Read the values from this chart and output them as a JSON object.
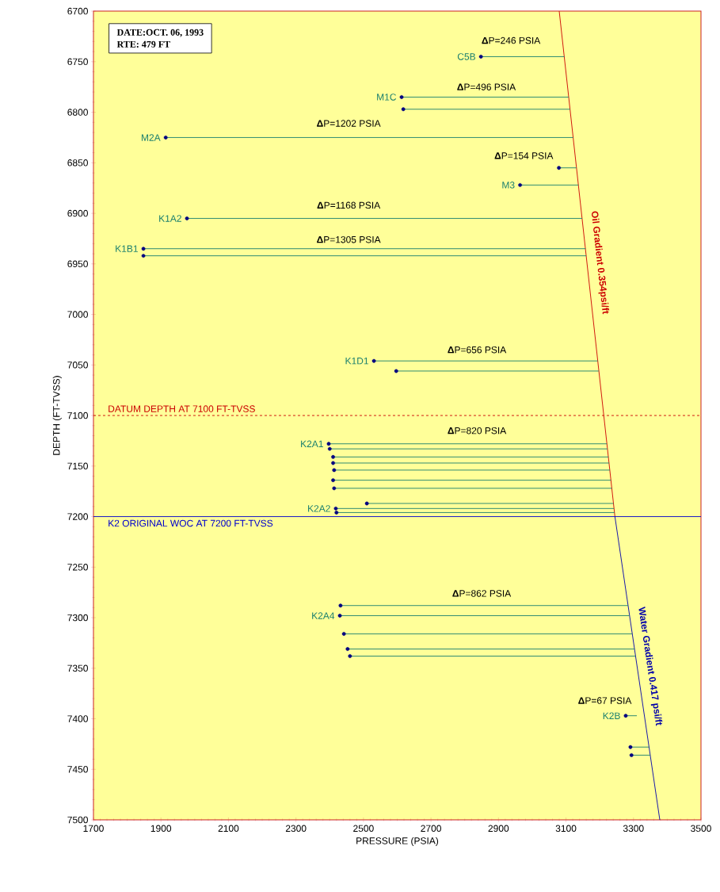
{
  "chart_data": {
    "type": "line",
    "xlabel": "PRESSURE (PSIA)",
    "ylabel": "DEPTH (FT-TVSS)",
    "xlim": [
      1700,
      3500
    ],
    "ylim": [
      7500,
      6700
    ],
    "xticks": [
      1700,
      1900,
      2100,
      2300,
      2500,
      2700,
      2900,
      3100,
      3300,
      3500
    ],
    "yticks": [
      6700,
      6750,
      6800,
      6850,
      6900,
      6950,
      7000,
      7050,
      7100,
      7150,
      7200,
      7250,
      7300,
      7350,
      7400,
      7450,
      7500
    ],
    "series": [
      {
        "name": "Oil Gradient 0.354psi/ft",
        "color": "#cc0000",
        "x": [
          3080,
          3245
        ],
        "values": [
          6700,
          7200
        ]
      },
      {
        "name": "Water Gradient 0.417 psi/ft",
        "color": "#0000aa",
        "x": [
          3245,
          3378
        ],
        "values": [
          7200,
          7500
        ]
      },
      {
        "name": "C5B",
        "color": "#1a7f6e",
        "x": [
          2848,
          3095
        ],
        "values": [
          6745,
          6745
        ]
      },
      {
        "name": "M1C",
        "color": "#1a7f6e",
        "x": [
          2613,
          3108,
          null,
          2618,
          3112
        ],
        "values": [
          6785,
          6785,
          null,
          6797,
          6797
        ]
      },
      {
        "name": "M2A",
        "color": "#1a7f6e",
        "x": [
          1914,
          3121
        ],
        "values": [
          6825,
          6825
        ]
      },
      {
        "name": "M3",
        "color": "#1a7f6e",
        "x": [
          3079,
          3131,
          null,
          2964,
          3137
        ],
        "values": [
          6855,
          6855,
          null,
          6872,
          6872
        ]
      },
      {
        "name": "K1A2",
        "color": "#1a7f6e",
        "x": [
          1977,
          3148
        ],
        "values": [
          6905,
          6905
        ]
      },
      {
        "name": "K1B1",
        "color": "#1a7f6e",
        "x": [
          1848,
          3158,
          null,
          1848,
          3160
        ],
        "values": [
          6935,
          6935,
          null,
          6942,
          6942
        ]
      },
      {
        "name": "K1D1",
        "color": "#1a7f6e",
        "x": [
          2531,
          3194,
          null,
          2597,
          3197
        ],
        "values": [
          7046,
          7046,
          null,
          7056,
          7056
        ]
      },
      {
        "name": "K2A1",
        "color": "#1a7f6e",
        "x": [
          2397,
          3221,
          null,
          2400,
          3223,
          null,
          2410,
          3226,
          null,
          2410,
          3228,
          null,
          2413,
          3230,
          null,
          2410,
          3233,
          null,
          2413,
          3236
        ],
        "values": [
          7128,
          7128,
          null,
          7133,
          7133,
          null,
          7141,
          7141,
          null,
          7147,
          7147,
          null,
          7154,
          7154,
          null,
          7164,
          7164,
          null,
          7172,
          7172
        ]
      },
      {
        "name": "K2A2",
        "color": "#1a7f6e",
        "x": [
          2510,
          3241,
          null,
          2418,
          3242,
          null,
          2420,
          3244
        ],
        "values": [
          7187,
          7187,
          null,
          7192,
          7192,
          null,
          7196,
          7196
        ]
      },
      {
        "name": "K2A4",
        "color": "#1a7f6e",
        "x": [
          2432,
          3284,
          null,
          2430,
          3288,
          null,
          2442,
          3296,
          null,
          2453,
          3303,
          null,
          2460,
          3306
        ],
        "values": [
          7288,
          7288,
          null,
          7298,
          7298,
          null,
          7316,
          7316,
          null,
          7331,
          7331,
          null,
          7338,
          7338
        ]
      },
      {
        "name": "K2B",
        "color": "#1a7f6e",
        "x": [
          3277,
          3310,
          null,
          3291,
          3346,
          null,
          3294,
          3350
        ],
        "values": [
          7397,
          7397,
          null,
          7428,
          7428,
          null,
          7436,
          7436
        ]
      },
      {
        "type": "scatter",
        "color": "#000080",
        "x": [
          2848,
          2613,
          2618,
          1914,
          3079,
          2964,
          1977,
          1848,
          1848,
          2531,
          2597,
          2397,
          2400,
          2410,
          2410,
          2413,
          2410,
          2413,
          2510,
          2418,
          2420,
          2432,
          2430,
          2442,
          2453,
          2460,
          3277,
          3291,
          3294
        ],
        "values": [
          6745,
          6785,
          6797,
          6825,
          6855,
          6872,
          6905,
          6935,
          6942,
          7046,
          7056,
          7128,
          7133,
          7141,
          7147,
          7154,
          7164,
          7172,
          7187,
          7192,
          7196,
          7288,
          7298,
          7316,
          7331,
          7338,
          7397,
          7428,
          7436
        ]
      }
    ],
    "ref_lines": [
      {
        "axis": "y",
        "value": 7100,
        "label": "DATUM DEPTH AT 7100 FT-TVSS",
        "color": "#cc0000",
        "line_style": "dashed"
      },
      {
        "axis": "y",
        "value": 7200,
        "label": "K2 ORIGINAL WOC AT 7200 FT-TVSS",
        "color": "#0000cc",
        "line_style": "solid"
      }
    ],
    "annotations": [
      "DATE:OCT. 06, 1993",
      "RTE: 479 FT",
      "**Δ**P=246 PSIA",
      "**Δ**P=496 PSIA",
      "**Δ**P=1202 PSIA",
      "**Δ**P=154 PSIA",
      "**Δ**P=1168 PSIA",
      "**Δ**P=1305 PSIA",
      "**Δ**P=656 PSIA",
      "**Δ**P=820 PSIA",
      "**Δ**P=862 PSIA",
      "**Δ**P=67 PSIA"
    ]
  }
}
